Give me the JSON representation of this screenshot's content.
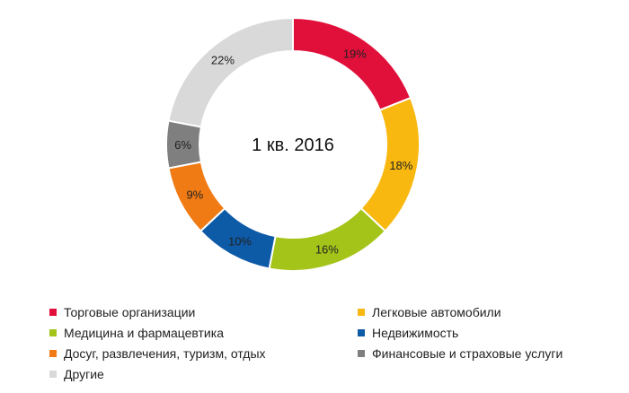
{
  "chart_data": {
    "type": "pie",
    "center_text": "1 кв. 2016",
    "slices": [
      {
        "label": "Торговые организации",
        "value": 19,
        "value_label": "19%",
        "color": "#e0103a",
        "label_color": "#ffffff"
      },
      {
        "label": "Легковые автомобили",
        "value": 18,
        "value_label": "18%",
        "color": "#f8b80f",
        "label_color": "#222222"
      },
      {
        "label": "Медицина и фармацевтика",
        "value": 16,
        "value_label": "16%",
        "color": "#a5c41a",
        "label_color": "#222222"
      },
      {
        "label": "Недвижимость",
        "value": 10,
        "value_label": "10%",
        "color": "#0d5aa7",
        "label_color": "#ffffff"
      },
      {
        "label": "Досуг, развлечения, туризм, отдых",
        "value": 9,
        "value_label": "9%",
        "color": "#f07b15",
        "label_color": "#222222"
      },
      {
        "label": "Финансовые и страховые услуги",
        "value": 6,
        "value_label": "6%",
        "color": "#7f7f7f",
        "label_color": "#ffffff"
      },
      {
        "label": "Другие",
        "value": 22,
        "value_label": "22%",
        "color": "#d9d9d9",
        "label_color": "#222222"
      }
    ],
    "legend_placement": "bottom"
  }
}
